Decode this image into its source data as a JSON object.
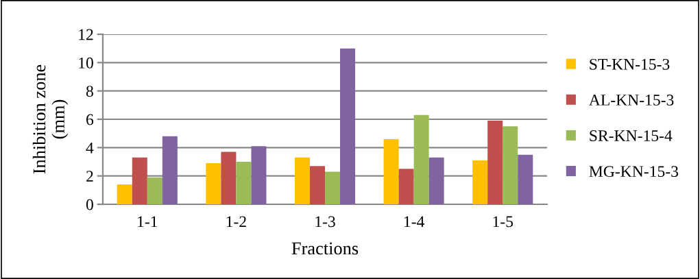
{
  "chart_data": {
    "type": "bar",
    "xlabel": "Fractions",
    "ylabel": "Inhibition zone\n(mm)",
    "categories": [
      "1-1",
      "1-2",
      "1-3",
      "1-4",
      "1-5"
    ],
    "series": [
      {
        "name": "ST-KN-15-3",
        "color": "#ffc000",
        "values": [
          1.4,
          2.9,
          3.3,
          4.6,
          3.1
        ]
      },
      {
        "name": "AL-KN-15-3",
        "color": "#c0504d",
        "values": [
          3.3,
          3.7,
          2.7,
          2.5,
          5.9
        ]
      },
      {
        "name": "SR-KN-15-4",
        "color": "#9bbb59",
        "values": [
          1.9,
          3.0,
          2.3,
          6.3,
          5.5
        ]
      },
      {
        "name": "MG-KN-15-3",
        "color": "#8064a2",
        "values": [
          4.8,
          4.1,
          11.0,
          3.3,
          3.5
        ]
      }
    ],
    "ylim": [
      0,
      12
    ],
    "yticks": [
      0,
      2,
      4,
      6,
      8,
      10,
      12
    ],
    "grid": "y",
    "legend": "right"
  }
}
